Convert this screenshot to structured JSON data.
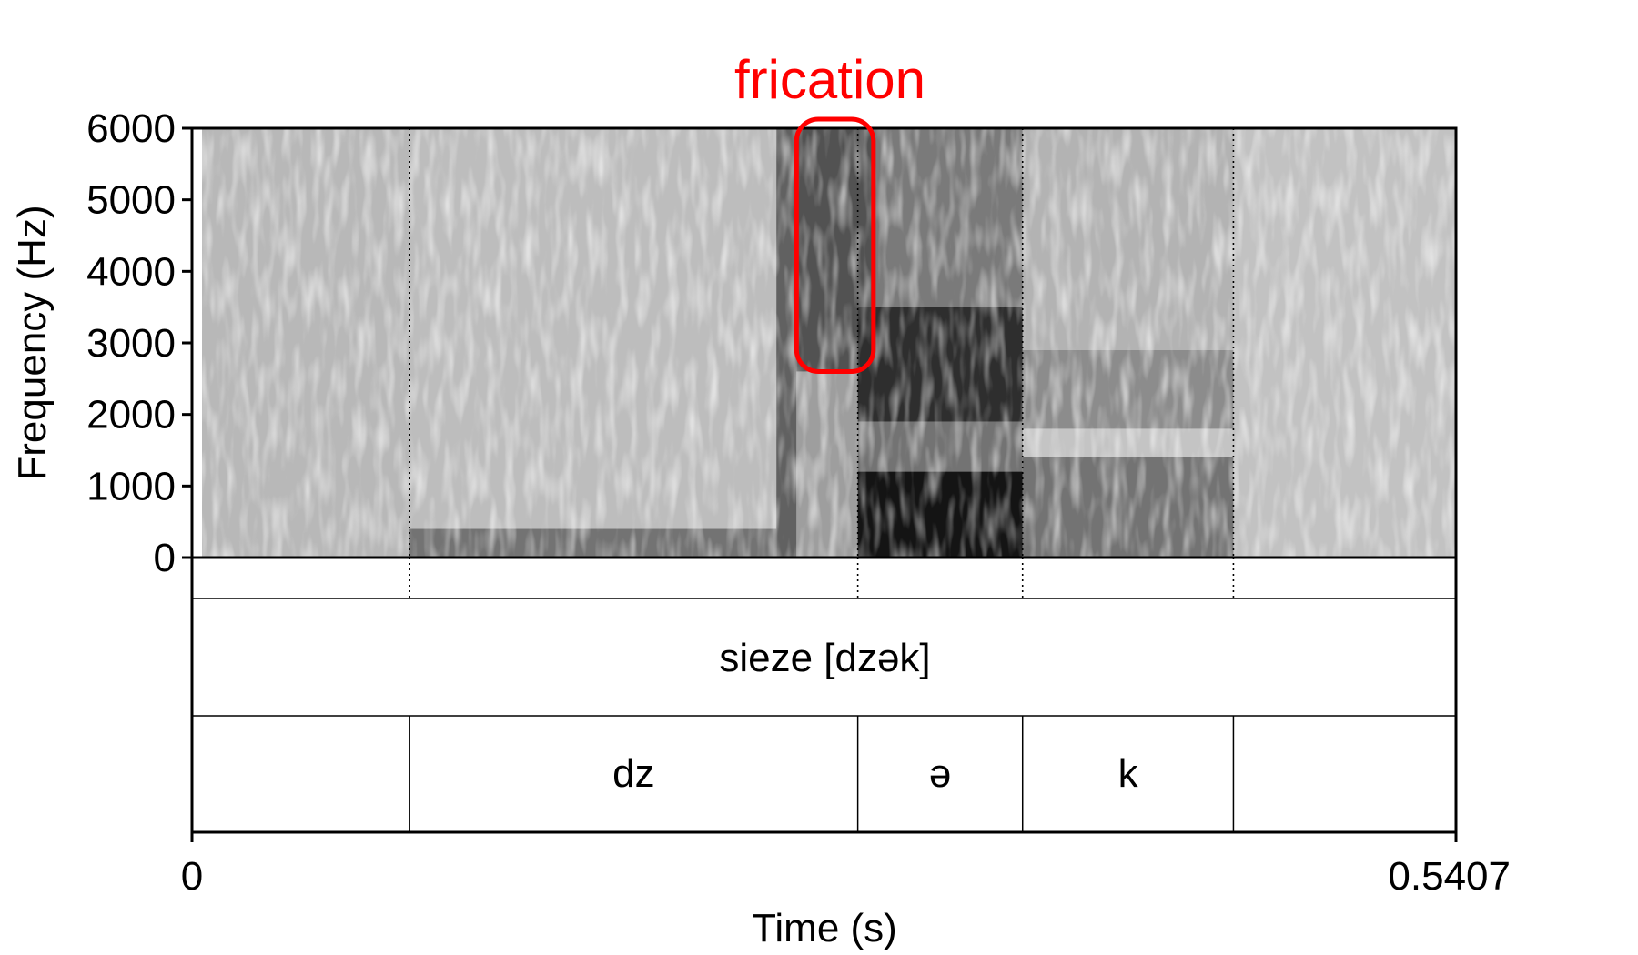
{
  "chart_data": {
    "type": "heatmap",
    "subtype": "spectrogram with text grid",
    "annotation": {
      "label": "frication",
      "color": "#ff0000",
      "t_range": [
        0.2586,
        0.2915
      ],
      "f_range": [
        2600,
        6000
      ]
    },
    "ylabel": "Frequency (Hz)",
    "xlabel": "Time (s)",
    "ylim": [
      0,
      6000
    ],
    "xlim": [
      0,
      0.5407
    ],
    "y_ticks": [
      "0",
      "1000",
      "2000",
      "3000",
      "4000",
      "5000",
      "6000"
    ],
    "y_tick_values": [
      0,
      1000,
      2000,
      3000,
      4000,
      5000,
      6000
    ],
    "x_tick_labels": [
      "0",
      "0.5407"
    ],
    "boundaries": [
      0.0931,
      0.2848,
      0.3553,
      0.4455
    ],
    "word_tier": [
      {
        "start": 0,
        "end": 0.5407,
        "label": "sieze [dzək]"
      }
    ],
    "phone_tier": [
      {
        "start": 0,
        "end": 0.0931,
        "label": ""
      },
      {
        "start": 0.0931,
        "end": 0.2848,
        "label": "dz"
      },
      {
        "start": 0.2848,
        "end": 0.3553,
        "label": "ə"
      },
      {
        "start": 0.3553,
        "end": 0.4455,
        "label": "k"
      },
      {
        "start": 0.4455,
        "end": 0.5407,
        "label": ""
      }
    ],
    "energy_regions": [
      {
        "t": [
          0.0,
          0.0931
        ],
        "f": [
          0,
          6000
        ],
        "level": 0.28
      },
      {
        "t": [
          0.0931,
          0.25
        ],
        "f": [
          0,
          6000
        ],
        "level": 0.26
      },
      {
        "t": [
          0.0931,
          0.25
        ],
        "f": [
          0,
          400
        ],
        "level": 0.55
      },
      {
        "t": [
          0.25,
          0.2586
        ],
        "f": [
          0,
          6000
        ],
        "level": 0.62
      },
      {
        "t": [
          0.2586,
          0.2915
        ],
        "f": [
          2600,
          6000
        ],
        "level": 0.68
      },
      {
        "t": [
          0.2586,
          0.2848
        ],
        "f": [
          0,
          2600
        ],
        "level": 0.38
      },
      {
        "t": [
          0.2915,
          0.3553
        ],
        "f": [
          3500,
          6000
        ],
        "level": 0.52
      },
      {
        "t": [
          0.2848,
          0.3553
        ],
        "f": [
          1900,
          3500
        ],
        "level": 0.82
      },
      {
        "t": [
          0.2848,
          0.3553
        ],
        "f": [
          1200,
          1900
        ],
        "level": 0.55
      },
      {
        "t": [
          0.2848,
          0.3553
        ],
        "f": [
          0,
          1200
        ],
        "level": 0.92
      },
      {
        "t": [
          0.3553,
          0.4455
        ],
        "f": [
          0,
          1400
        ],
        "level": 0.55
      },
      {
        "t": [
          0.3553,
          0.4455
        ],
        "f": [
          1800,
          2900
        ],
        "level": 0.45
      },
      {
        "t": [
          0.3553,
          0.4455
        ],
        "f": [
          2900,
          6000
        ],
        "level": 0.3
      },
      {
        "t": [
          0.4455,
          0.5407
        ],
        "f": [
          0,
          6000
        ],
        "level": 0.24
      }
    ],
    "grid": false,
    "legend": "none"
  }
}
